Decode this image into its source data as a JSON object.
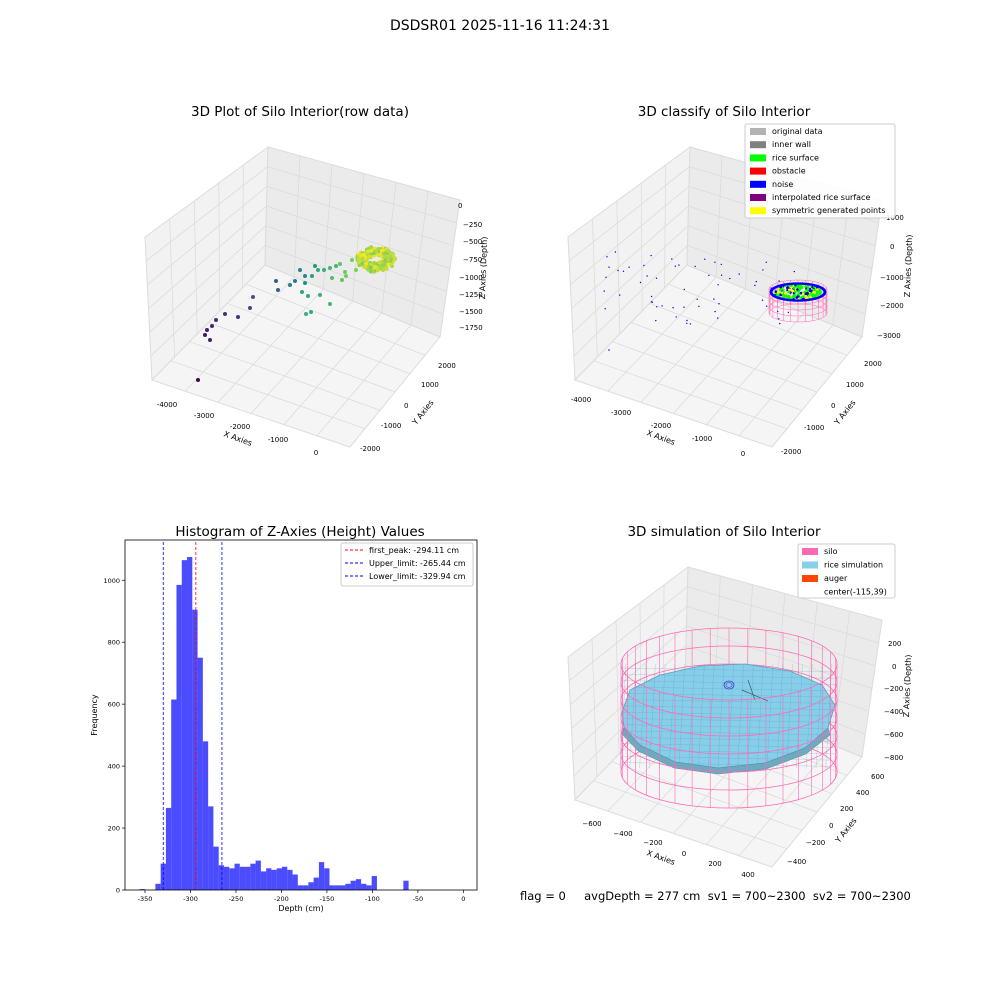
{
  "suptitle": "DSDSR01 2025-11-16 11:24:31",
  "footer": "flag = 0     avgDepth = 277 cm  sv1 = 700~2300  sv2 = 700~2300",
  "chart_data": [
    {
      "type": "scatter",
      "title": "3D Plot of Silo Interior(row data)",
      "xlabel": "X Axies",
      "ylabel": "Y Axies",
      "zlabel": "Z Axies (Depth)",
      "xticks": [
        "-4000",
        "-3000",
        "-2000",
        "-1000",
        "0"
      ],
      "yticks": [
        "-2000",
        "-1000",
        "0",
        "1000",
        "2000"
      ],
      "zticks": [
        "0",
        "−250",
        "−500",
        "−750",
        "−1000",
        "−1250",
        "−1500",
        "−1750"
      ],
      "colormap": "viridis"
    },
    {
      "type": "scatter",
      "title": "3D classify of Silo Interior",
      "xlabel": "X Axies",
      "ylabel": "Y Axies",
      "zlabel": "Z Axies (Depth)",
      "xticks": [
        "-4000",
        "-3000",
        "-2000",
        "-1000",
        "0"
      ],
      "yticks": [
        "-2000",
        "-1000",
        "0",
        "1000",
        "2000"
      ],
      "zticks": [
        "1000",
        "0",
        "−1000",
        "−2000",
        "−3000"
      ],
      "legend_position": "top-right",
      "legend": [
        {
          "name": "original data",
          "color": "#b3b3b3"
        },
        {
          "name": "inner wall",
          "color": "#808080"
        },
        {
          "name": "rice surface",
          "color": "#00ff00"
        },
        {
          "name": "obstacle",
          "color": "#ff0000"
        },
        {
          "name": "noise",
          "color": "#0000ff"
        },
        {
          "name": "interpolated rice surface",
          "color": "#800080"
        },
        {
          "name": "symmetric generated points",
          "color": "#ffff00"
        }
      ]
    },
    {
      "type": "bar",
      "title": "Histogram of Z-Axies (Height) Values",
      "xlabel": "Depth (cm)",
      "ylabel": "Frequency",
      "xlim": [
        -372,
        15
      ],
      "ylim": [
        0,
        1130
      ],
      "xticks": [
        -350,
        -300,
        -250,
        -200,
        -150,
        -100,
        -50,
        0
      ],
      "yticks": [
        0,
        200,
        400,
        600,
        800,
        1000
      ],
      "bar_color": "#0000ff",
      "bin_start": -356,
      "bin_width": 5.8,
      "values": [
        3,
        0,
        0,
        20,
        85,
        265,
        615,
        985,
        1065,
        1075,
        905,
        750,
        480,
        270,
        140,
        80,
        75,
        70,
        85,
        75,
        75,
        85,
        95,
        60,
        70,
        65,
        70,
        75,
        65,
        50,
        15,
        15,
        25,
        40,
        90,
        70,
        15,
        15,
        15,
        20,
        30,
        35,
        20,
        15,
        45,
        0,
        0,
        0,
        0,
        0,
        30
      ],
      "vlines": [
        {
          "label": "first_peak: -294.11 cm",
          "x": -294.11,
          "color": "#ff0000"
        },
        {
          "label": "Upper_limit: -265.44 cm",
          "x": -265.44,
          "color": "#0000ff"
        },
        {
          "label": "Lower_limit: -329.94 cm",
          "x": -329.94,
          "color": "#0000ff"
        }
      ],
      "legend_position": "top-right"
    },
    {
      "type": "scatter",
      "title": "3D simulation of Silo Interior",
      "xlabel": "X Axies",
      "ylabel": "Y Axies",
      "zlabel": "Z Axies (Depth)",
      "xticks": [
        "−600",
        "−400",
        "−200",
        "0",
        "200",
        "400"
      ],
      "yticks": [
        "−400",
        "−200",
        "0",
        "200",
        "400",
        "600"
      ],
      "zticks": [
        "200",
        "0",
        "−200",
        "−400",
        "−600",
        "−800"
      ],
      "legend_position": "top-right",
      "legend": [
        {
          "name": "silo",
          "color": "#ff69b4"
        },
        {
          "name": "rice simulation",
          "color": "#87ceeb"
        },
        {
          "name": "auger",
          "color": "#ff4500"
        },
        {
          "name": "center(-115,39)",
          "color": ""
        }
      ]
    }
  ]
}
